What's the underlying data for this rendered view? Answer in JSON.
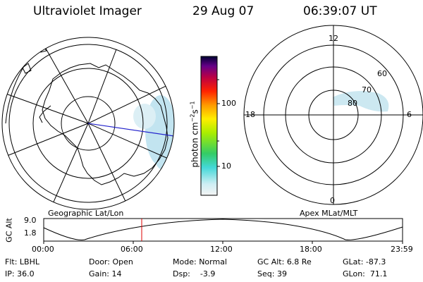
{
  "header": {
    "instrument": "Ultraviolet Imager",
    "date": "29 Aug 07",
    "time": "06:39:07 UT"
  },
  "left_panel": {
    "caption": "Geographic Lat/Lon"
  },
  "right_panel": {
    "caption": "Apex MLat/MLT",
    "mlt_labels": [
      "12",
      "18",
      "6",
      "0"
    ],
    "lat_labels": [
      "60",
      "70",
      "80"
    ]
  },
  "colorbar": {
    "unit_label": "photon cm",
    "unit_exp1": "−2",
    "unit_s": "s",
    "unit_exp2": "−1",
    "ticks": [
      "100",
      "10"
    ]
  },
  "altitude_plot": {
    "y_title": "GC Alt",
    "y_ticks": [
      "9.0",
      "1.8"
    ],
    "x_ticks": [
      "00:00",
      "06:00",
      "12:00",
      "18:00",
      "23:59"
    ]
  },
  "info": {
    "flt_label": "Flt:",
    "flt_value": "LBHL",
    "ip_label": "IP:",
    "ip_value": "36.0",
    "door_label": "Door:",
    "door_value": "Open",
    "gain_label": "Gain:",
    "gain_value": "14",
    "mode_label": "Mode:",
    "mode_value": "Normal",
    "dsp_label": "Dsp:",
    "dsp_value": "-3.9",
    "gcalt_label": "GC Alt:",
    "gcalt_value": "6.8 Re",
    "seq_label": "Seq:",
    "seq_value": "39",
    "glat_label": "GLat:",
    "glat_value": "-87.3",
    "glon_label": "GLon:",
    "glon_value": "71.1"
  },
  "colors": {
    "aurora": "#a8d8ec",
    "track_line": "#2222cc",
    "time_marker": "#dd0000"
  }
}
